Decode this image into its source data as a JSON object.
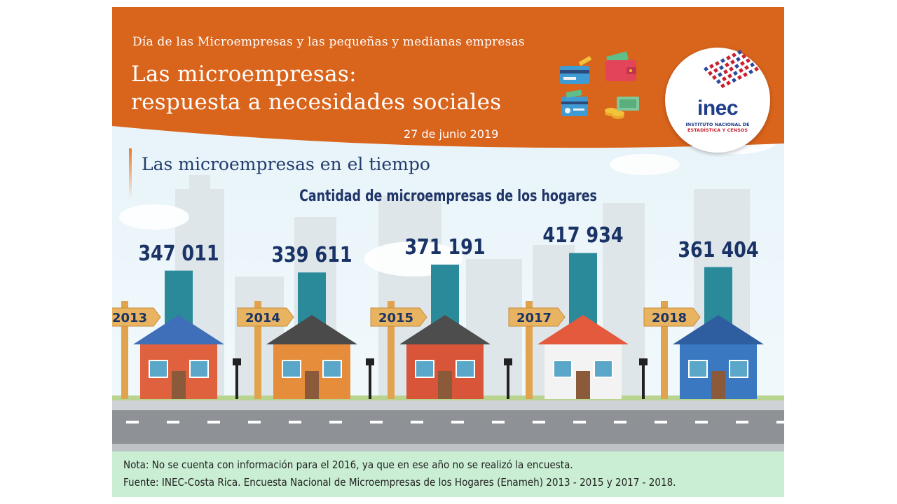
{
  "header": {
    "subtitle": "Día de las Microempresas y las pequeñas y medianas empresas",
    "title_line1": "Las microempresas:",
    "title_line2": "respuesta a necesidades sociales",
    "date": "27 de junio 2019",
    "brand_color": "#d9641c"
  },
  "logo": {
    "name": "inec",
    "line1": "INSTITUTO NACIONAL DE",
    "line2": "ESTADÍSTICA Y CENSOS"
  },
  "section_title": "Las microempresas en el tiempo",
  "chart_data": {
    "type": "bar",
    "title": "Cantidad de microempresas de  los hogares",
    "categories": [
      "2013",
      "2014",
      "2015",
      "2017",
      "2018"
    ],
    "values": [
      347011,
      339611,
      371191,
      417934,
      361404
    ],
    "value_labels": [
      "347 011",
      "339 611",
      "371 191",
      "417 934",
      "361 404"
    ],
    "bar_color": "#2a8a9a",
    "ylim": [
      0,
      450000
    ]
  },
  "note": {
    "nota": "Nota: No se cuenta con información para el 2016, ya que en ese año no se realizó la encuesta.",
    "fuente": "Fuente: INEC-Costa Rica. Encuesta Nacional de Microempresas de los Hogares (Enameh) 2013 - 2015  y 2017 - 2018."
  },
  "icons": [
    "credit-card-icon",
    "wallet-icon",
    "id-card-icon",
    "coins-icon"
  ]
}
